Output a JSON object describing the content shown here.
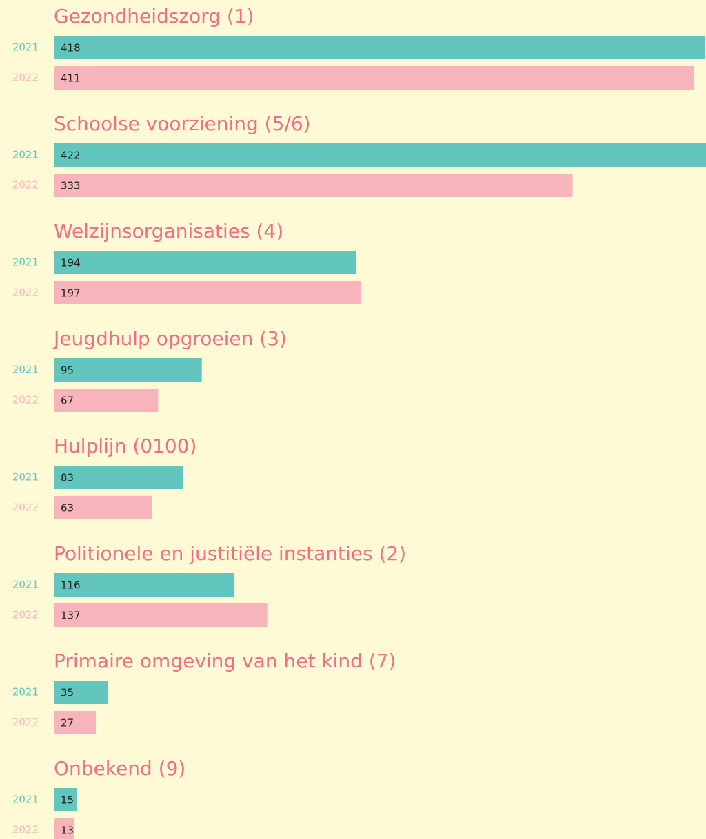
{
  "chart_data": {
    "type": "bar",
    "orientation": "horizontal",
    "categories": [
      "Gezondheidszorg (1)",
      "Schoolse voorziening (5/6)",
      "Welzijnsorganisaties (4)",
      "Jeugdhulp opgroeien (3)",
      "Hulplijn (0100)",
      "Politionele en justitiële instanties (2)",
      "Primaire omgeving van het kind (7)",
      "Onbekend (9)"
    ],
    "series": [
      {
        "name": "2021",
        "color": "#62c6bf",
        "values": [
          418,
          422,
          194,
          95,
          83,
          116,
          35,
          15
        ]
      },
      {
        "name": "2022",
        "color": "#f7b5bb",
        "values": [
          411,
          333,
          197,
          67,
          63,
          137,
          27,
          13
        ]
      }
    ]
  }
}
